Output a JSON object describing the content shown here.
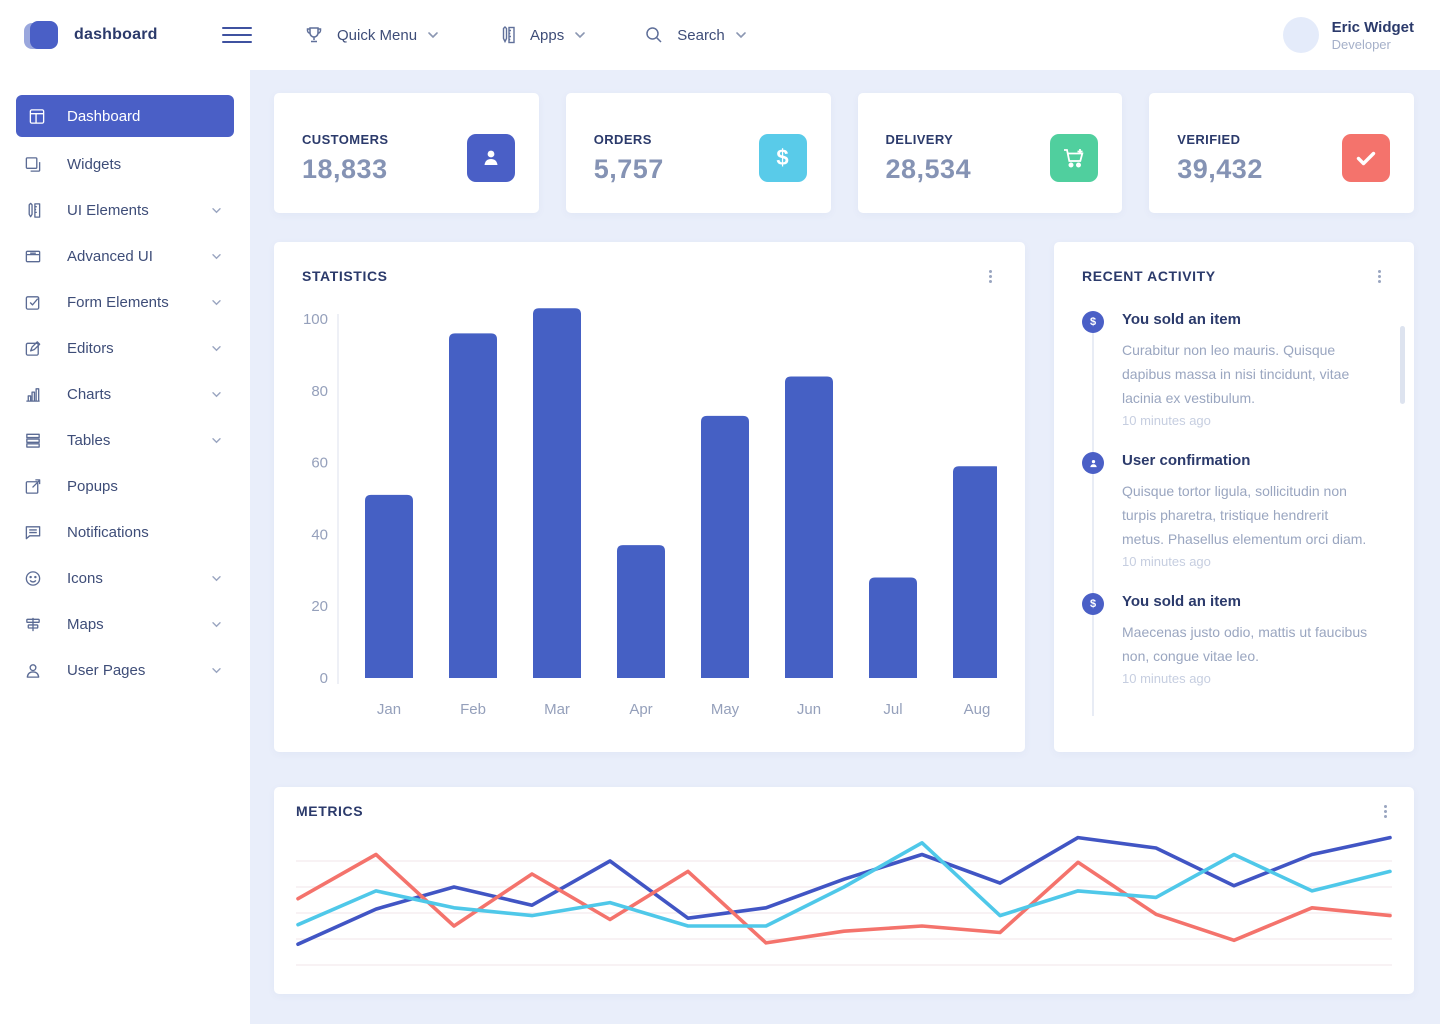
{
  "topbar": {
    "brand": "dashboard",
    "menus": [
      {
        "label": "Quick Menu",
        "icon": "trophy-icon"
      },
      {
        "label": "Apps",
        "icon": "apps-icon"
      },
      {
        "label": "Search",
        "icon": "search-icon"
      }
    ],
    "user": {
      "name": "Eric Widget",
      "role": "Developer"
    }
  },
  "sidebar": {
    "items": [
      {
        "label": "Dashboard",
        "icon": "dashboard-icon",
        "active": true,
        "expandable": false
      },
      {
        "label": "Widgets",
        "icon": "widgets-icon",
        "active": false,
        "expandable": false
      },
      {
        "label": "UI Elements",
        "icon": "ui-elements-icon",
        "active": false,
        "expandable": true
      },
      {
        "label": "Advanced UI",
        "icon": "advanced-ui-icon",
        "active": false,
        "expandable": true
      },
      {
        "label": "Form Elements",
        "icon": "form-elements-icon",
        "active": false,
        "expandable": true
      },
      {
        "label": "Editors",
        "icon": "editors-icon",
        "active": false,
        "expandable": true
      },
      {
        "label": "Charts",
        "icon": "charts-icon",
        "active": false,
        "expandable": true
      },
      {
        "label": "Tables",
        "icon": "tables-icon",
        "active": false,
        "expandable": true
      },
      {
        "label": "Popups",
        "icon": "popups-icon",
        "active": false,
        "expandable": false
      },
      {
        "label": "Notifications",
        "icon": "notifications-icon",
        "active": false,
        "expandable": false
      },
      {
        "label": "Icons",
        "icon": "icons-icon",
        "active": false,
        "expandable": true
      },
      {
        "label": "Maps",
        "icon": "maps-icon",
        "active": false,
        "expandable": true
      },
      {
        "label": "User Pages",
        "icon": "user-pages-icon",
        "active": false,
        "expandable": true
      }
    ]
  },
  "stats": [
    {
      "label": "CUSTOMERS",
      "value": "18,833",
      "icon": "user-icon",
      "color": "#4a5fc6"
    },
    {
      "label": "ORDERS",
      "value": "5,757",
      "icon": "dollar-icon",
      "color": "#59cbe9"
    },
    {
      "label": "DELIVERY",
      "value": "28,534",
      "icon": "cart-icon",
      "color": "#50cf9e"
    },
    {
      "label": "VERIFIED",
      "value": "39,432",
      "icon": "check-icon",
      "color": "#f4736c"
    }
  ],
  "statistics_panel": {
    "title": "STATISTICS"
  },
  "activity_panel": {
    "title": "RECENT ACTIVITY",
    "items": [
      {
        "icon": "dollar-icon",
        "title": "You sold an item",
        "body": "Curabitur non leo mauris. Quisque dapibus massa in nisi tincidunt, vitae lacinia ex vestibulum.",
        "time": "10 minutes ago"
      },
      {
        "icon": "user-icon",
        "title": "User confirmation",
        "body": "Quisque tortor ligula, sollicitudin non turpis pharetra, tristique hendrerit metus. Phasellus elementum orci diam.",
        "time": "10 minutes ago"
      },
      {
        "icon": "dollar-icon",
        "title": "You sold an item",
        "body": "Maecenas justo odio, mattis ut faucibus non, congue vitae leo.",
        "time": "10 minutes ago"
      }
    ]
  },
  "metrics_panel": {
    "title": "METRICS"
  },
  "chart_data": [
    {
      "type": "bar",
      "title": "STATISTICS",
      "categories": [
        "Jan",
        "Feb",
        "Mar",
        "Apr",
        "May",
        "Jun",
        "Jul",
        "Aug"
      ],
      "values": [
        51,
        96,
        103,
        37,
        73,
        84,
        28,
        59
      ],
      "xlabel": "",
      "ylabel": "",
      "yticks": [
        0,
        20,
        40,
        60,
        80,
        100
      ],
      "ylim": [
        0,
        103
      ],
      "bar_color": "#4560c4",
      "axis_color": "#dde2ee",
      "grid": false,
      "legend": "none"
    },
    {
      "type": "line",
      "title": "METRICS",
      "x": [
        1,
        2,
        3,
        4,
        5,
        6,
        7,
        8,
        9,
        10,
        11,
        12,
        13,
        14,
        15
      ],
      "series": [
        {
          "name": "indigo",
          "color": "#4155c4",
          "values": [
            16,
            43,
            60,
            46,
            80,
            36,
            44,
            66,
            85,
            63,
            98,
            90,
            61,
            85,
            98
          ]
        },
        {
          "name": "salmon",
          "color": "#f4736c",
          "values": [
            51,
            85,
            30,
            70,
            35,
            72,
            17,
            26,
            30,
            25,
            79,
            39,
            19,
            44,
            38
          ]
        },
        {
          "name": "cyan",
          "color": "#4fc8e9",
          "values": [
            31,
            57,
            44,
            38,
            48,
            30,
            30,
            60,
            94,
            38,
            57,
            52,
            85,
            57,
            72
          ]
        }
      ],
      "ylim": [
        0,
        100
      ],
      "grid": true,
      "grid_color": "#f5eef1",
      "legend": "none"
    }
  ]
}
